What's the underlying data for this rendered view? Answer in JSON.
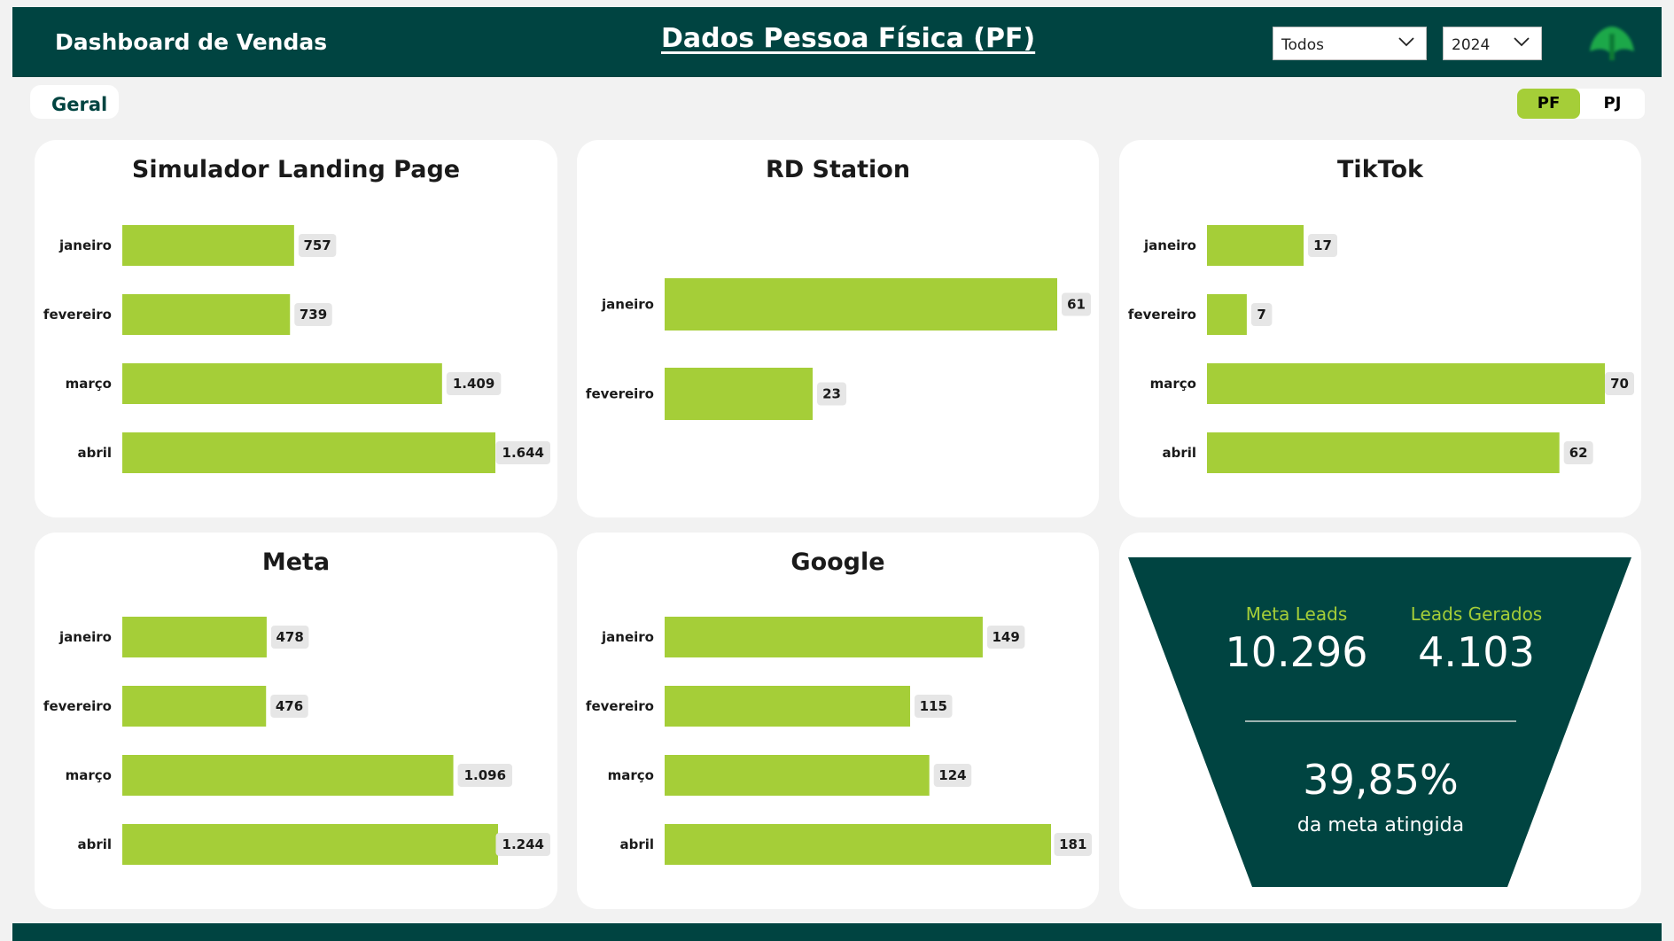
{
  "header": {
    "brand": "Dashboard de Vendas",
    "title": "Dados Pessoa Física (PF)",
    "filter_category": "Todos",
    "filter_year": "2024"
  },
  "tabs": {
    "geral": "Geral"
  },
  "toggle": {
    "pf": "PF",
    "pj": "PJ",
    "selected": "PF"
  },
  "colors": {
    "header": "#004441",
    "bar": "#a5ce38",
    "card": "#ffffff",
    "background": "#f2f2f2"
  },
  "chart_data": [
    {
      "type": "bar",
      "orientation": "horizontal",
      "title": "Simulador Landing Page",
      "categories": [
        "janeiro",
        "fevereiro",
        "março",
        "abril"
      ],
      "values": [
        757,
        739,
        1409,
        1644
      ],
      "labels": [
        "757",
        "739",
        "1.409",
        "1.644"
      ]
    },
    {
      "type": "bar",
      "orientation": "horizontal",
      "title": "RD Station",
      "categories": [
        "janeiro",
        "fevereiro"
      ],
      "values": [
        61,
        23
      ],
      "labels": [
        "61",
        "23"
      ]
    },
    {
      "type": "bar",
      "orientation": "horizontal",
      "title": "TikTok",
      "categories": [
        "janeiro",
        "fevereiro",
        "março",
        "abril"
      ],
      "values": [
        17,
        7,
        70,
        62
      ],
      "labels": [
        "17",
        "7",
        "70",
        "62"
      ]
    },
    {
      "type": "bar",
      "orientation": "horizontal",
      "title": "Meta",
      "categories": [
        "janeiro",
        "fevereiro",
        "março",
        "abril"
      ],
      "values": [
        478,
        476,
        1096,
        1244
      ],
      "labels": [
        "478",
        "476",
        "1.096",
        "1.244"
      ]
    },
    {
      "type": "bar",
      "orientation": "horizontal",
      "title": "Google",
      "categories": [
        "janeiro",
        "fevereiro",
        "março",
        "abril"
      ],
      "values": [
        149,
        115,
        124,
        181
      ],
      "labels": [
        "149",
        "115",
        "124",
        "181"
      ]
    }
  ],
  "funnel": {
    "meta_leads_label": "Meta Leads",
    "meta_leads_value": "10.296",
    "leads_gerados_label": "Leads Gerados",
    "leads_gerados_value": "4.103",
    "percent": "39,85%",
    "percent_caption": "da meta atingida"
  }
}
